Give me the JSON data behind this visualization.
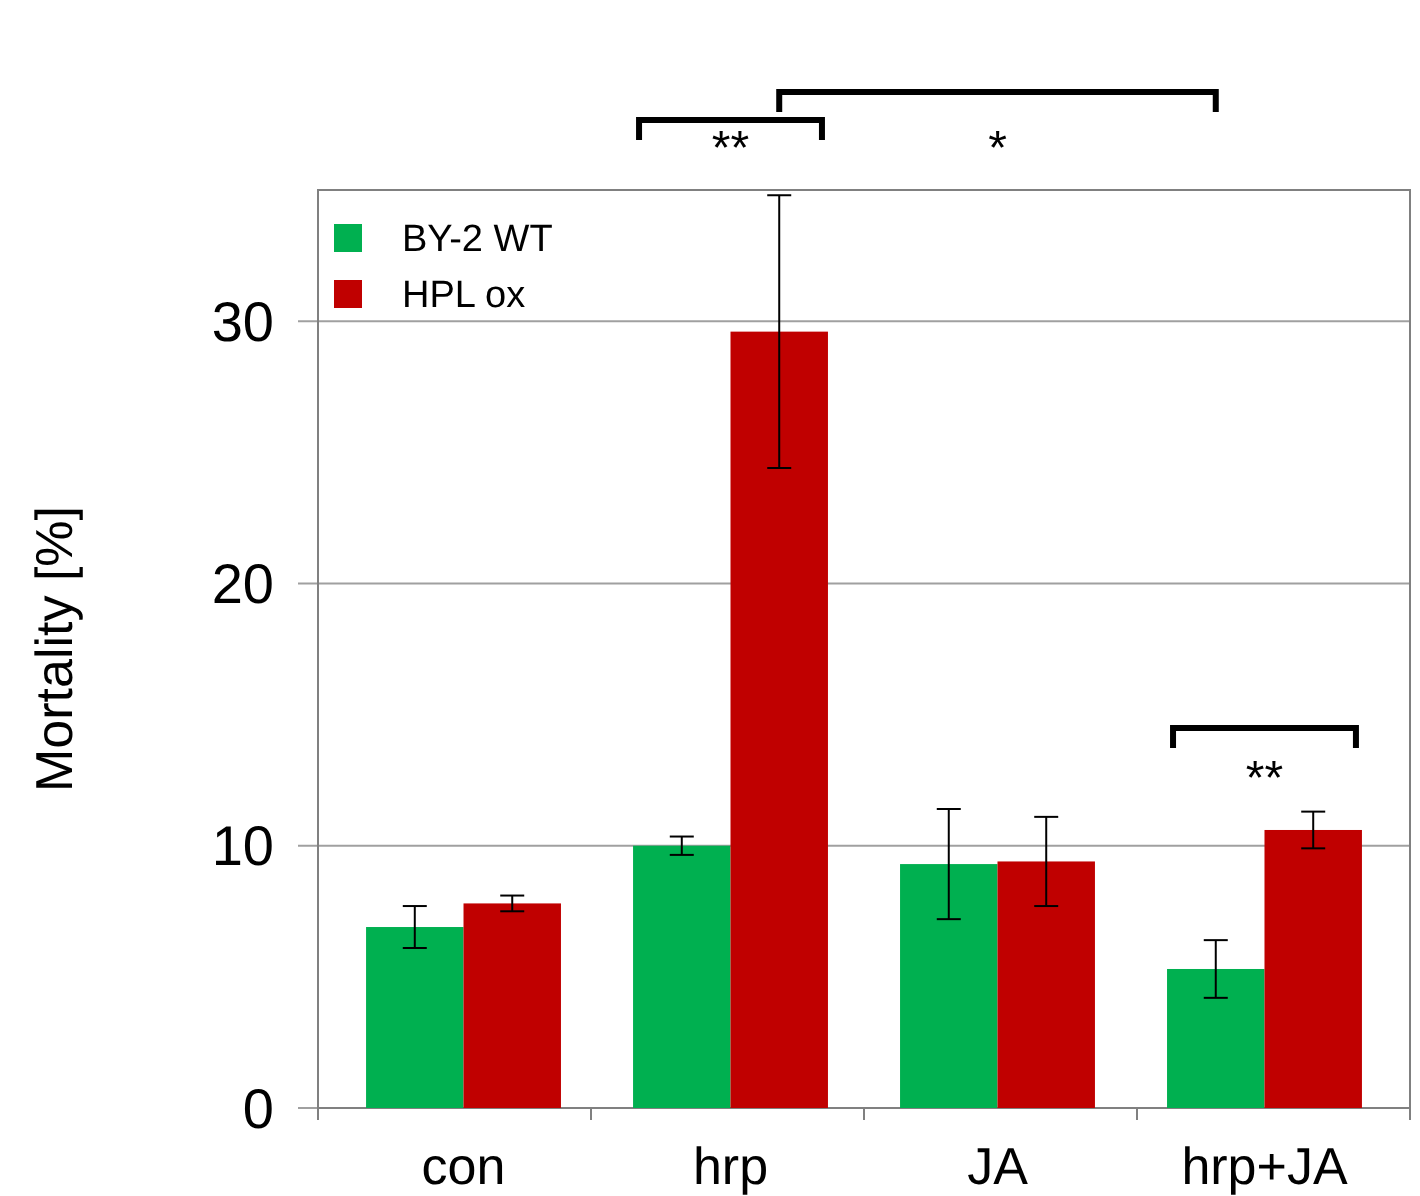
{
  "chart_data": {
    "type": "bar",
    "ylabel": "Mortality  [%]",
    "categories": [
      "con",
      "hrp",
      "JA",
      "hrp+JA"
    ],
    "series": [
      {
        "name": "BY-2 WT",
        "color": "#00b050",
        "values": [
          6.9,
          10.0,
          9.3,
          5.3
        ],
        "errors": [
          0.8,
          0.35,
          2.1,
          1.1
        ]
      },
      {
        "name": "HPL ox",
        "color": "#c00000",
        "values": [
          7.8,
          29.6,
          9.4,
          10.6
        ],
        "errors": [
          0.3,
          5.2,
          1.7,
          0.7
        ]
      }
    ],
    "ylim": [
      0,
      35
    ],
    "yticks": [
      0,
      10,
      20,
      30
    ],
    "grid": "y",
    "legend": "top left",
    "annotations": [
      "**",
      "*",
      "**"
    ]
  }
}
